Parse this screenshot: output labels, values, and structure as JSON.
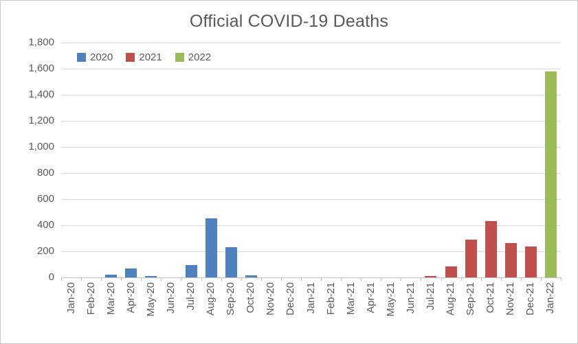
{
  "chart_data": {
    "type": "bar",
    "title": "Official COVID-19 Deaths",
    "xlabel": "",
    "ylabel": "",
    "grid": true,
    "categories": [
      "Jan-20",
      "Feb-20",
      "Mar-20",
      "Apr-20",
      "May-20",
      "Jun-20",
      "Jul-20",
      "Aug-20",
      "Sep-20",
      "Oct-20",
      "Nov-20",
      "Dec-20",
      "Jan-21",
      "Feb-21",
      "Mar-21",
      "Apr-21",
      "May-21",
      "Jun-21",
      "Jul-21",
      "Aug-21",
      "Sep-21",
      "Oct-21",
      "Nov-21",
      "Dec-21",
      "Jan-22"
    ],
    "series": [
      {
        "name": "2020",
        "color": "#4F81BD",
        "category_start": 0,
        "values": [
          0,
          0,
          20,
          70,
          8,
          0,
          95,
          450,
          230,
          15,
          0,
          0
        ]
      },
      {
        "name": "2021",
        "color": "#C0504D",
        "category_start": 12,
        "values": [
          0,
          0,
          0,
          0,
          0,
          0,
          12,
          85,
          290,
          430,
          265,
          235
        ]
      },
      {
        "name": "2022",
        "color": "#9BBB59",
        "category_start": 24,
        "values": [
          1580
        ]
      }
    ],
    "y_axis": {
      "min": 0,
      "max": 1800,
      "step": 200,
      "tick_labels": [
        "0",
        "200",
        "400",
        "600",
        "800",
        "1,000",
        "1,200",
        "1,400",
        "1,600",
        "1,800"
      ]
    },
    "legend": {
      "position": "top-left",
      "entries": [
        {
          "label": "2020",
          "color": "#4F81BD"
        },
        {
          "label": "2021",
          "color": "#C0504D"
        },
        {
          "label": "2022",
          "color": "#9BBB59"
        }
      ]
    }
  },
  "colors": {
    "text": "#595959",
    "gridline": "#D9D9D9",
    "axis_line": "#BFBFBF",
    "background": "#FFFFFF",
    "frame_border": "#C9C9C9"
  }
}
